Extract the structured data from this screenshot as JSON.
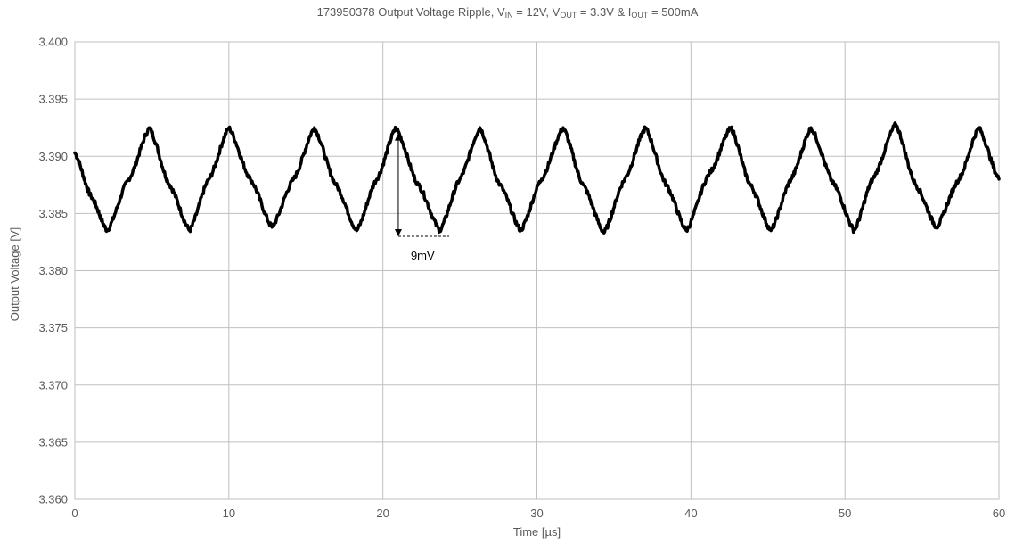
{
  "chart_data": {
    "type": "line",
    "title": {
      "prefix": "173950378  Output Voltage Ripple, V",
      "vin_sub": "IN",
      "vin_text": " = 12V, V",
      "vout_sub": "OUT",
      "vout_text": " = 3.3V & I",
      "iout_sub": "OUT",
      "iout_text": " = 500mA"
    },
    "xlabel": "Time [µs]",
    "ylabel": "Output Voltage [V]",
    "xlim": [
      0,
      60
    ],
    "ylim": [
      3.36,
      3.4
    ],
    "x_ticks": [
      "0",
      "10",
      "20",
      "30",
      "40",
      "50",
      "60"
    ],
    "y_ticks": [
      "3.360",
      "3.365",
      "3.370",
      "3.375",
      "3.380",
      "3.385",
      "3.390",
      "3.395",
      "3.400"
    ],
    "grid": true,
    "legend": "none",
    "line_color": "#000000",
    "grid_color": "#bfbfbf",
    "series": [
      {
        "x": [
          0,
          1.05,
          2.1,
          3.5,
          4.85,
          6.15,
          7.45,
          8.7,
          10.0,
          11.4,
          12.8,
          14.2,
          15.55,
          16.95,
          18.3,
          19.6,
          20.85,
          22.3,
          23.7,
          25.0,
          26.3,
          27.6,
          28.95,
          30.3,
          31.7,
          33.0,
          34.35,
          35.7,
          37.05,
          38.4,
          39.7,
          41.2,
          42.6,
          43.85,
          45.2,
          46.5,
          47.8,
          49.3,
          50.6,
          51.8,
          53.3,
          54.6,
          55.95,
          57.4,
          58.7,
          60.0
        ],
        "y": [
          3.3903,
          3.3865,
          3.3835,
          3.388,
          3.3925,
          3.3875,
          3.3835,
          3.388,
          3.3925,
          3.388,
          3.3838,
          3.388,
          3.3925,
          3.3875,
          3.3835,
          3.388,
          3.3925,
          3.3875,
          3.3835,
          3.388,
          3.3925,
          3.3875,
          3.3835,
          3.388,
          3.3925,
          3.3875,
          3.3833,
          3.388,
          3.3925,
          3.3875,
          3.3835,
          3.3885,
          3.3925,
          3.3875,
          3.3835,
          3.388,
          3.3925,
          3.3875,
          3.3835,
          3.388,
          3.3928,
          3.3875,
          3.3838,
          3.388,
          3.3925,
          3.388
        ]
      }
    ],
    "annotations": [
      {
        "text": "9mV",
        "x": 21,
        "y_top": 3.392,
        "y_bottom": 3.383,
        "dash_to_x": 24.3
      }
    ]
  }
}
